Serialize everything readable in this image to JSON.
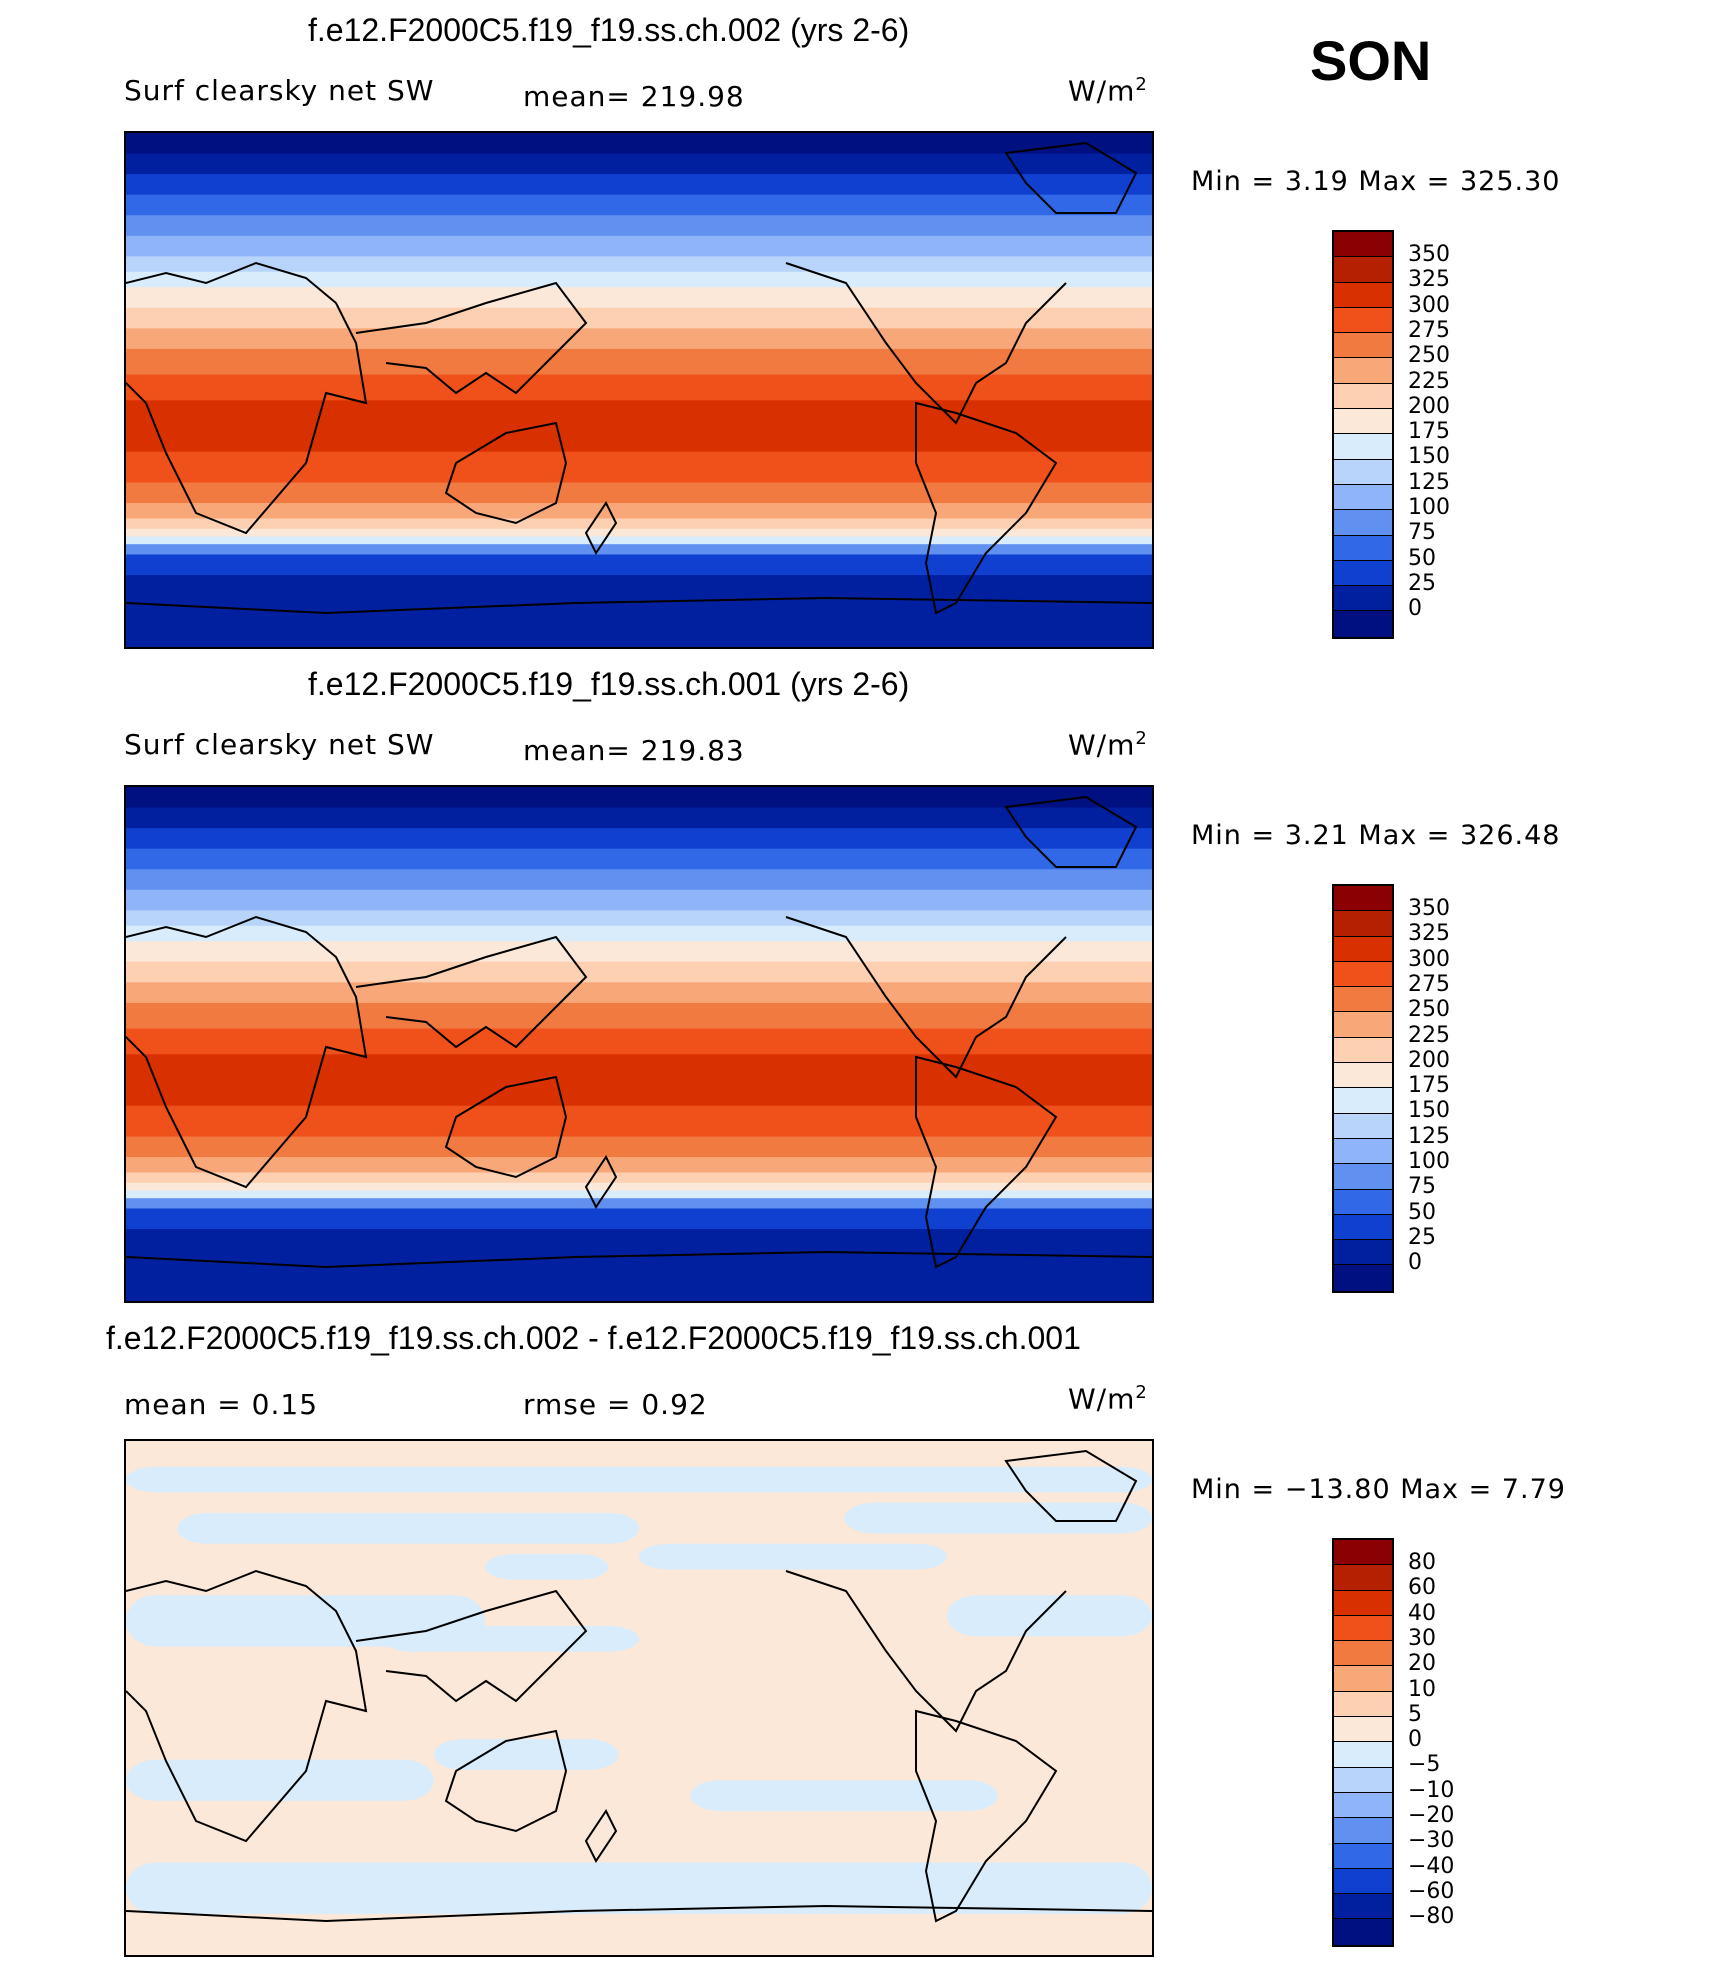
{
  "season": "SON",
  "chart_data": [
    {
      "type": "heatmap",
      "title": "f.e12.F2000C5.f19_f19.ss.ch.002 (yrs 2-6)",
      "variable": "Surf clearsky net SW",
      "mean": "mean= 219.98",
      "units": "W/m",
      "units_sup": "2",
      "minmax": "Min =    3.19 Max = 325.30",
      "min": 3.19,
      "max": 325.3,
      "levels": [
        "350",
        "325",
        "300",
        "275",
        "250",
        "225",
        "200",
        "175",
        "150",
        "125",
        "100",
        "75",
        "50",
        "25",
        "0"
      ],
      "colors": [
        "#8b0000",
        "#b52000",
        "#d93000",
        "#f0501a",
        "#f07a40",
        "#f8a878",
        "#fcd0b0",
        "#fce8d8",
        "#d8ecfc",
        "#b8d4fa",
        "#90b4f8",
        "#6090f0",
        "#3068e8",
        "#1040d0",
        "#0020a0",
        "#001080"
      ]
    },
    {
      "type": "heatmap",
      "title": "f.e12.F2000C5.f19_f19.ss.ch.001 (yrs 2-6)",
      "variable": "Surf clearsky net SW",
      "mean": "mean= 219.83",
      "units": "W/m",
      "units_sup": "2",
      "minmax": "Min =    3.21 Max = 326.48",
      "min": 3.21,
      "max": 326.48,
      "levels": [
        "350",
        "325",
        "300",
        "275",
        "250",
        "225",
        "200",
        "175",
        "150",
        "125",
        "100",
        "75",
        "50",
        "25",
        "0"
      ],
      "colors": [
        "#8b0000",
        "#b52000",
        "#d93000",
        "#f0501a",
        "#f07a40",
        "#f8a878",
        "#fcd0b0",
        "#fce8d8",
        "#d8ecfc",
        "#b8d4fa",
        "#90b4f8",
        "#6090f0",
        "#3068e8",
        "#1040d0",
        "#0020a0",
        "#001080"
      ]
    },
    {
      "type": "heatmap",
      "title": "f.e12.F2000C5.f19_f19.ss.ch.002 - f.e12.F2000C5.f19_f19.ss.ch.001",
      "mean": "mean =     0.15",
      "rmse": "rmse =     0.92",
      "units": "W/m",
      "units_sup": "2",
      "minmax": "Min = −13.80 Max =     7.79",
      "min": -13.8,
      "max": 7.79,
      "levels": [
        "80",
        "60",
        "40",
        "30",
        "20",
        "10",
        "5",
        "0",
        "−5",
        "−10",
        "−20",
        "−30",
        "−40",
        "−60",
        "−80"
      ],
      "colors": [
        "#8b0000",
        "#b52000",
        "#d93000",
        "#f0501a",
        "#f07a40",
        "#f8a878",
        "#fcd0b0",
        "#fce8d8",
        "#d8ecfc",
        "#b8d4fa",
        "#90b4f8",
        "#6090f0",
        "#3068e8",
        "#1040d0",
        "#0020a0",
        "#001080"
      ]
    }
  ]
}
